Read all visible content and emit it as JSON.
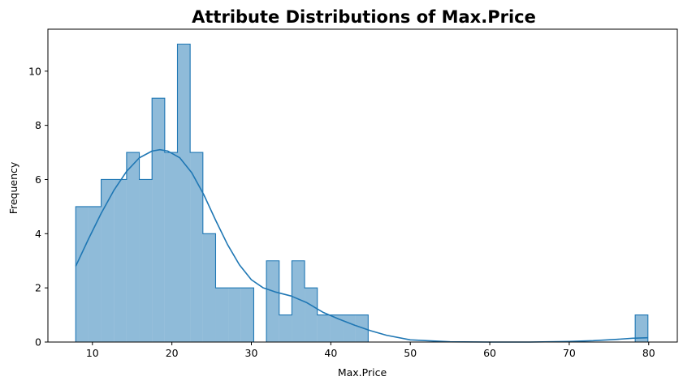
{
  "chart_data": {
    "type": "histogram",
    "title": "Attribute Distributions of Max.Price",
    "xlabel": "Max.Price",
    "ylabel": "Frequency",
    "xlim": [
      4.4,
      83.6
    ],
    "ylim": [
      0,
      11.55
    ],
    "x_ticks": [
      10,
      20,
      30,
      40,
      50,
      60,
      70,
      80
    ],
    "y_ticks": [
      0,
      2,
      4,
      6,
      8,
      10
    ],
    "grid": false,
    "element": "step",
    "bin_width": 1.6,
    "bins": [
      {
        "x0": 7.9,
        "x1": 9.5,
        "count": 5
      },
      {
        "x0": 9.5,
        "x1": 11.1,
        "count": 5
      },
      {
        "x0": 11.1,
        "x1": 12.7,
        "count": 6
      },
      {
        "x0": 12.7,
        "x1": 14.3,
        "count": 6
      },
      {
        "x0": 14.3,
        "x1": 15.9,
        "count": 7
      },
      {
        "x0": 15.9,
        "x1": 17.5,
        "count": 6
      },
      {
        "x0": 17.5,
        "x1": 19.1,
        "count": 9
      },
      {
        "x0": 19.1,
        "x1": 20.7,
        "count": 7
      },
      {
        "x0": 20.7,
        "x1": 22.3,
        "count": 11
      },
      {
        "x0": 22.3,
        "x1": 23.9,
        "count": 7
      },
      {
        "x0": 23.9,
        "x1": 25.5,
        "count": 4
      },
      {
        "x0": 25.5,
        "x1": 27.1,
        "count": 2
      },
      {
        "x0": 27.1,
        "x1": 28.7,
        "count": 2
      },
      {
        "x0": 28.7,
        "x1": 30.3,
        "count": 2
      },
      {
        "x0": 30.3,
        "x1": 31.9,
        "count": 0
      },
      {
        "x0": 31.9,
        "x1": 33.5,
        "count": 3
      },
      {
        "x0": 33.5,
        "x1": 35.1,
        "count": 1
      },
      {
        "x0": 35.1,
        "x1": 36.7,
        "count": 3
      },
      {
        "x0": 36.7,
        "x1": 38.3,
        "count": 2
      },
      {
        "x0": 38.3,
        "x1": 39.9,
        "count": 1
      },
      {
        "x0": 39.9,
        "x1": 41.5,
        "count": 1
      },
      {
        "x0": 41.5,
        "x1": 43.1,
        "count": 1
      },
      {
        "x0": 43.1,
        "x1": 44.7,
        "count": 1
      },
      {
        "x0": 78.3,
        "x1": 79.9,
        "count": 1
      }
    ],
    "kde": {
      "x": [
        7.9,
        9.5,
        11.1,
        12.7,
        14.3,
        15.9,
        17.5,
        18.5,
        19.5,
        21.0,
        22.5,
        24.0,
        25.5,
        27.0,
        28.5,
        30.0,
        31.5,
        33.0,
        35.0,
        37.0,
        39.0,
        41.0,
        43.0,
        45.0,
        47.0,
        50.0,
        55.0,
        60.0,
        65.0,
        70.0,
        73.0,
        76.0,
        78.0,
        79.9
      ],
      "y": [
        2.8,
        3.8,
        4.75,
        5.6,
        6.3,
        6.8,
        7.05,
        7.1,
        7.05,
        6.8,
        6.25,
        5.45,
        4.5,
        3.6,
        2.85,
        2.3,
        2.0,
        1.85,
        1.7,
        1.45,
        1.1,
        0.85,
        0.62,
        0.42,
        0.25,
        0.08,
        0.01,
        0.0,
        0.0,
        0.02,
        0.05,
        0.1,
        0.14,
        0.16
      ]
    },
    "colors": {
      "fill": "#1f77b4",
      "fill_opacity": 0.5,
      "edge": "#1f77b4",
      "kde_line": "#1f77b4"
    }
  }
}
